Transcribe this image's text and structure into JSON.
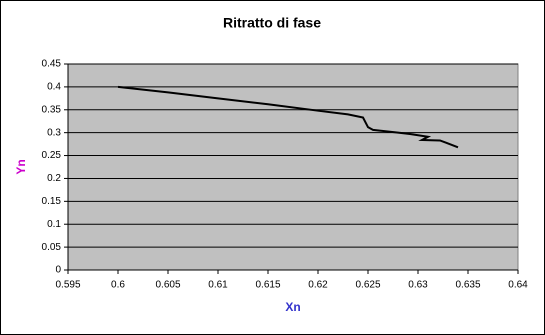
{
  "chart_data": {
    "type": "line",
    "title": "Ritratto di fase",
    "x_label": "Xn",
    "y_label": "Yn",
    "x": [
      0.6,
      0.605,
      0.61,
      0.615,
      0.62,
      0.623,
      0.6245,
      0.625,
      0.6255,
      0.628,
      0.6292,
      0.631,
      0.6304,
      0.6322,
      0.6328,
      0.634
    ],
    "series": [
      {
        "name": "Yn",
        "color": "#000000",
        "values": [
          0.4,
          0.388,
          0.375,
          0.362,
          0.348,
          0.34,
          0.333,
          0.312,
          0.306,
          0.3,
          0.297,
          0.291,
          0.284,
          0.283,
          0.278,
          0.268
        ]
      }
    ],
    "xlim": [
      0.595,
      0.64
    ],
    "xticks": [
      0.595,
      0.6,
      0.605,
      0.61,
      0.615,
      0.62,
      0.625,
      0.63,
      0.635,
      0.64
    ],
    "ylim": [
      0,
      0.45
    ],
    "yticks": [
      0,
      0.05,
      0.1,
      0.15,
      0.2,
      0.25,
      0.3,
      0.35,
      0.4,
      0.45
    ],
    "grid": true,
    "plot_background": "#c0c0c0",
    "x_label_color": "#3333cc",
    "y_label_color": "#cc00cc"
  }
}
